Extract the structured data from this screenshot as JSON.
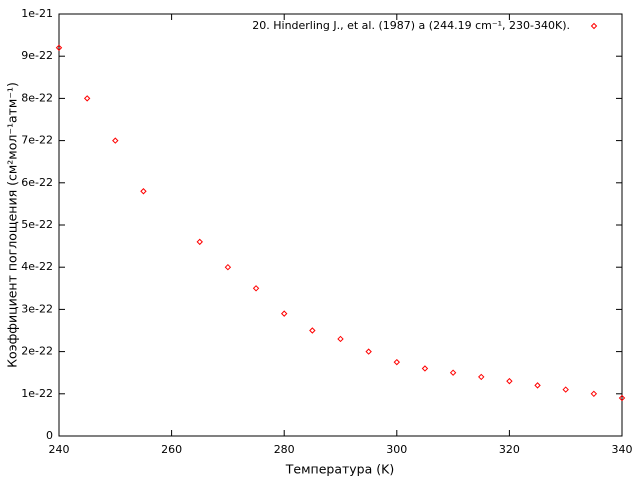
{
  "chart_data": {
    "type": "scatter",
    "x_label": "Температура (K)",
    "y_label": "Коэффициент поглощения (см²мол⁻¹атм⁻¹)",
    "series": [
      {
        "name": "20. Hinderling J., et al. (1987) a (244.19 cm⁻¹, 230-340K).",
        "color": "#ff0000",
        "x": [
          240,
          245,
          250,
          255,
          265,
          270,
          275,
          280,
          285,
          290,
          295,
          300,
          305,
          310,
          315,
          320,
          325,
          330,
          335,
          340
        ],
        "values": [
          9.2e-22,
          8e-22,
          7e-22,
          5.8e-22,
          4.6e-22,
          4e-22,
          3.5e-22,
          2.9e-22,
          2.5e-22,
          2.3e-22,
          2e-22,
          1.75e-22,
          1.6e-22,
          1.5e-22,
          1.4e-22,
          1.3e-22,
          1.2e-22,
          1.1e-22,
          1e-22,
          9e-23
        ]
      }
    ],
    "xlim": [
      240,
      340
    ],
    "xticks": [
      240,
      260,
      280,
      300,
      320,
      340
    ],
    "ylim": [
      0,
      1e-21
    ],
    "yticks": [
      0,
      1e-22,
      2e-22,
      3e-22,
      4e-22,
      5e-22,
      6e-22,
      7e-22,
      8e-22,
      9e-22,
      1e-21
    ],
    "legend": "top-right",
    "grid": false
  }
}
